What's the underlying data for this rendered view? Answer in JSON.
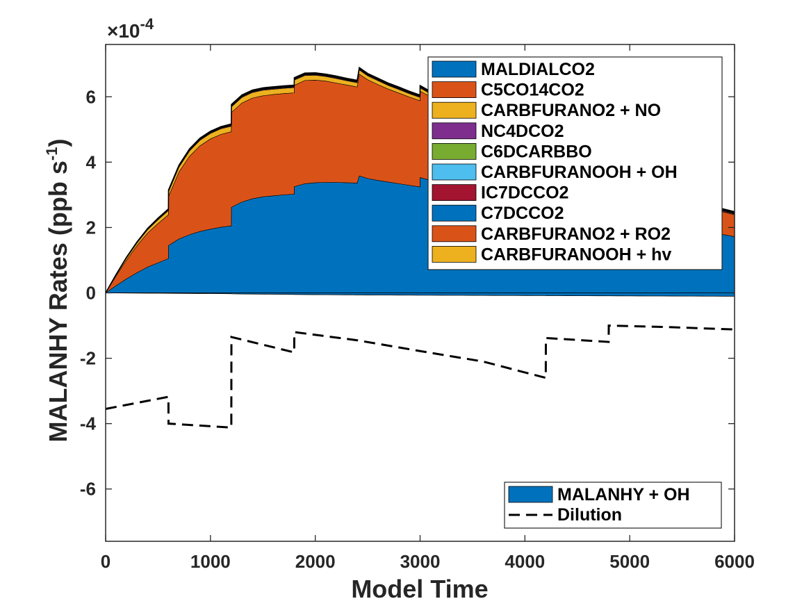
{
  "chart_data": {
    "type": "area",
    "xlabel": "Model Time",
    "ylabel": "MALANHY Rates (ppb s",
    "ylabel_sup": "-1",
    "ylabel_end": ")",
    "y_multiplier": {
      "base": "10",
      "exponent": "-4",
      "prefix": "×"
    },
    "xlim": [
      0,
      6000
    ],
    "ylim": [
      -7.6,
      7.6
    ],
    "x_ticks": [
      0,
      1000,
      2000,
      3000,
      4000,
      5000,
      6000
    ],
    "x_tick_labels": [
      "0",
      "1000",
      "2000",
      "3000",
      "4000",
      "5000",
      "6000"
    ],
    "y_ticks": [
      -6,
      -4,
      -2,
      0,
      2,
      4,
      6
    ],
    "y_tick_labels": [
      "-6",
      "-4",
      "-2",
      "0",
      "2",
      "4",
      "6"
    ],
    "grid": false,
    "x": [
      0,
      100,
      200,
      300,
      400,
      500,
      599,
      600,
      700,
      800,
      900,
      1000,
      1100,
      1199,
      1200,
      1300,
      1400,
      1500,
      1600,
      1700,
      1799,
      1800,
      1900,
      2000,
      2100,
      2200,
      2300,
      2400,
      2420,
      2500,
      2600,
      2700,
      2800,
      2900,
      2999,
      3000,
      3100,
      3200,
      3300,
      3400,
      3500,
      3600,
      3700,
      3800,
      3900,
      4000,
      4100,
      4199,
      4200,
      4300,
      4400,
      4500,
      4600,
      4700,
      4799,
      4800,
      4900,
      5000,
      5100,
      5200,
      5300,
      5400,
      5500,
      5600,
      5700,
      5800,
      5900,
      6000
    ],
    "positive_series": [
      {
        "name": "MALDIALCO2",
        "color": "#0072BD",
        "values": [
          0,
          0.22,
          0.43,
          0.62,
          0.79,
          0.92,
          1.05,
          1.45,
          1.65,
          1.78,
          1.88,
          1.95,
          2.01,
          2.05,
          2.62,
          2.78,
          2.88,
          2.94,
          2.97,
          3.0,
          3.02,
          3.25,
          3.34,
          3.37,
          3.38,
          3.38,
          3.37,
          3.36,
          3.58,
          3.5,
          3.44,
          3.39,
          3.34,
          3.29,
          3.24,
          3.53,
          3.44,
          3.37,
          3.31,
          3.25,
          3.19,
          3.13,
          3.07,
          3.01,
          2.96,
          2.91,
          2.86,
          2.82,
          2.7,
          2.63,
          2.56,
          2.49,
          2.42,
          2.36,
          2.3,
          2.35,
          2.3,
          2.24,
          2.18,
          2.13,
          2.08,
          2.03,
          1.98,
          1.93,
          1.88,
          1.83,
          1.78,
          1.72
        ]
      },
      {
        "name": "C5CO14CO2",
        "color": "#D95319",
        "values": [
          0,
          0.3,
          0.58,
          0.83,
          1.04,
          1.2,
          1.34,
          1.5,
          2.05,
          2.4,
          2.62,
          2.76,
          2.84,
          2.88,
          2.9,
          3.03,
          3.08,
          3.09,
          3.1,
          3.1,
          3.1,
          3.1,
          3.16,
          3.14,
          3.1,
          3.04,
          2.99,
          2.94,
          3.11,
          3.02,
          2.93,
          2.84,
          2.77,
          2.7,
          2.64,
          2.64,
          2.56,
          2.48,
          2.4,
          2.33,
          2.26,
          2.2,
          2.14,
          2.08,
          2.03,
          1.98,
          1.93,
          1.88,
          1.68,
          1.6,
          1.52,
          1.45,
          1.38,
          1.32,
          1.26,
          1.08,
          1.03,
          0.98,
          0.94,
          0.9,
          0.86,
          0.82,
          0.79,
          0.76,
          0.73,
          0.71,
          0.69,
          0.67
        ]
      },
      {
        "name": "CARBFURANO2 + NO",
        "color": "#EDB120",
        "values": [
          0,
          0.03,
          0.06,
          0.08,
          0.1,
          0.12,
          0.13,
          0.14,
          0.15,
          0.16,
          0.17,
          0.17,
          0.17,
          0.17,
          0.17,
          0.17,
          0.17,
          0.17,
          0.16,
          0.16,
          0.16,
          0.16,
          0.15,
          0.15,
          0.14,
          0.14,
          0.13,
          0.13,
          0.13,
          0.12,
          0.12,
          0.11,
          0.11,
          0.1,
          0.1,
          0.1,
          0.09,
          0.09,
          0.08,
          0.08,
          0.08,
          0.07,
          0.07,
          0.07,
          0.06,
          0.06,
          0.06,
          0.06,
          0.05,
          0.05,
          0.05,
          0.04,
          0.04,
          0.04,
          0.04,
          0.03,
          0.03,
          0.03,
          0.03,
          0.03,
          0.03,
          0.02,
          0.02,
          0.02,
          0.02,
          0.02,
          0.02,
          0.02
        ]
      },
      {
        "name": "NC4DCO2",
        "color": "#7E2F8E",
        "values": [
          0,
          0.004,
          0.008,
          0.01,
          0.012,
          0.014,
          0.015,
          0.016,
          0.017,
          0.018,
          0.018,
          0.019,
          0.019,
          0.019,
          0.02,
          0.02,
          0.02,
          0.02,
          0.02,
          0.02,
          0.02,
          0.02,
          0.02,
          0.02,
          0.02,
          0.02,
          0.02,
          0.02,
          0.02,
          0.02,
          0.02,
          0.02,
          0.02,
          0.02,
          0.02,
          0.02,
          0.02,
          0.02,
          0.02,
          0.02,
          0.02,
          0.02,
          0.02,
          0.02,
          0.02,
          0.02,
          0.02,
          0.02,
          0.02,
          0.02,
          0.02,
          0.02,
          0.02,
          0.02,
          0.02,
          0.02,
          0.02,
          0.02,
          0.02,
          0.02,
          0.02,
          0.02,
          0.02,
          0.02,
          0.02,
          0.02,
          0.02,
          0.02
        ]
      },
      {
        "name": "C6DCARBBO",
        "color": "#77AC30",
        "values": [
          0,
          0.002,
          0.003,
          0.004,
          0.005,
          0.006,
          0.006,
          0.007,
          0.007,
          0.008,
          0.008,
          0.008,
          0.008,
          0.008,
          0.009,
          0.009,
          0.009,
          0.009,
          0.009,
          0.009,
          0.009,
          0.009,
          0.009,
          0.009,
          0.009,
          0.009,
          0.009,
          0.009,
          0.009,
          0.009,
          0.009,
          0.009,
          0.009,
          0.009,
          0.009,
          0.009,
          0.009,
          0.009,
          0.009,
          0.009,
          0.009,
          0.009,
          0.009,
          0.009,
          0.009,
          0.009,
          0.009,
          0.009,
          0.009,
          0.009,
          0.009,
          0.009,
          0.009,
          0.009,
          0.009,
          0.009,
          0.009,
          0.009,
          0.009,
          0.009,
          0.009,
          0.009,
          0.009,
          0.009,
          0.009,
          0.009,
          0.009,
          0.009
        ]
      },
      {
        "name": "CARBFURANOOH + OH",
        "color": "#4DBEEE",
        "values": [
          0,
          0.002,
          0.003,
          0.004,
          0.005,
          0.006,
          0.006,
          0.007,
          0.007,
          0.008,
          0.008,
          0.008,
          0.008,
          0.008,
          0.009,
          0.009,
          0.009,
          0.009,
          0.009,
          0.009,
          0.009,
          0.009,
          0.009,
          0.009,
          0.009,
          0.009,
          0.009,
          0.009,
          0.009,
          0.009,
          0.009,
          0.009,
          0.009,
          0.009,
          0.009,
          0.009,
          0.009,
          0.009,
          0.009,
          0.009,
          0.009,
          0.009,
          0.009,
          0.009,
          0.009,
          0.009,
          0.009,
          0.009,
          0.009,
          0.009,
          0.009,
          0.009,
          0.009,
          0.009,
          0.009,
          0.009,
          0.009,
          0.009,
          0.009,
          0.009,
          0.009,
          0.009,
          0.009,
          0.009,
          0.009,
          0.009,
          0.009,
          0.009
        ]
      },
      {
        "name": "IC7DCCO2",
        "color": "#A2142F",
        "values": [
          0,
          0.002,
          0.003,
          0.004,
          0.005,
          0.006,
          0.006,
          0.007,
          0.007,
          0.008,
          0.008,
          0.008,
          0.008,
          0.008,
          0.009,
          0.009,
          0.009,
          0.009,
          0.009,
          0.009,
          0.009,
          0.009,
          0.009,
          0.009,
          0.009,
          0.009,
          0.009,
          0.009,
          0.009,
          0.009,
          0.009,
          0.009,
          0.009,
          0.009,
          0.009,
          0.009,
          0.009,
          0.009,
          0.009,
          0.009,
          0.009,
          0.009,
          0.009,
          0.009,
          0.009,
          0.009,
          0.009,
          0.009,
          0.009,
          0.009,
          0.009,
          0.009,
          0.009,
          0.009,
          0.009,
          0.009,
          0.009,
          0.009,
          0.009,
          0.009,
          0.009,
          0.009,
          0.009,
          0.009,
          0.009,
          0.009,
          0.009,
          0.009
        ]
      },
      {
        "name": "C7DCCO2",
        "color": "#0072BD",
        "values": [
          0,
          0.002,
          0.003,
          0.004,
          0.005,
          0.006,
          0.006,
          0.007,
          0.007,
          0.008,
          0.008,
          0.008,
          0.008,
          0.008,
          0.009,
          0.009,
          0.009,
          0.009,
          0.009,
          0.009,
          0.009,
          0.009,
          0.009,
          0.009,
          0.009,
          0.009,
          0.009,
          0.009,
          0.009,
          0.009,
          0.009,
          0.009,
          0.009,
          0.009,
          0.009,
          0.009,
          0.009,
          0.009,
          0.009,
          0.009,
          0.009,
          0.009,
          0.009,
          0.009,
          0.009,
          0.009,
          0.009,
          0.009,
          0.009,
          0.009,
          0.009,
          0.009,
          0.009,
          0.009,
          0.009,
          0.009,
          0.009,
          0.009,
          0.009,
          0.009,
          0.009,
          0.009,
          0.009,
          0.009,
          0.009,
          0.009,
          0.009,
          0.009
        ]
      },
      {
        "name": "CARBFURANO2 + RO2",
        "color": "#D95319",
        "values": [
          0,
          0.002,
          0.003,
          0.004,
          0.005,
          0.006,
          0.006,
          0.007,
          0.007,
          0.008,
          0.008,
          0.008,
          0.008,
          0.008,
          0.009,
          0.009,
          0.009,
          0.009,
          0.009,
          0.009,
          0.009,
          0.009,
          0.009,
          0.009,
          0.009,
          0.009,
          0.009,
          0.009,
          0.009,
          0.009,
          0.009,
          0.009,
          0.009,
          0.009,
          0.009,
          0.009,
          0.009,
          0.009,
          0.009,
          0.009,
          0.009,
          0.009,
          0.009,
          0.009,
          0.009,
          0.009,
          0.009,
          0.009,
          0.009,
          0.009,
          0.009,
          0.009,
          0.009,
          0.009,
          0.009,
          0.009,
          0.009,
          0.009,
          0.009,
          0.009,
          0.009,
          0.009,
          0.009,
          0.009,
          0.009,
          0.009,
          0.009,
          0.009
        ]
      },
      {
        "name": "CARBFURANOOH + hv",
        "color": "#EDB120",
        "values": [
          0,
          0.002,
          0.003,
          0.004,
          0.005,
          0.006,
          0.006,
          0.007,
          0.007,
          0.008,
          0.008,
          0.008,
          0.008,
          0.008,
          0.009,
          0.009,
          0.009,
          0.009,
          0.009,
          0.009,
          0.009,
          0.009,
          0.009,
          0.009,
          0.009,
          0.009,
          0.009,
          0.009,
          0.009,
          0.009,
          0.009,
          0.009,
          0.009,
          0.009,
          0.009,
          0.009,
          0.009,
          0.009,
          0.009,
          0.009,
          0.009,
          0.009,
          0.009,
          0.009,
          0.009,
          0.009,
          0.009,
          0.009,
          0.009,
          0.009,
          0.009,
          0.009,
          0.009,
          0.009,
          0.009,
          0.009,
          0.009,
          0.009,
          0.009,
          0.009,
          0.009,
          0.009,
          0.009,
          0.009,
          0.009,
          0.009,
          0.009,
          0.009
        ]
      }
    ],
    "negative_series": [
      {
        "name": "MALANHY + OH",
        "color": "#0072BD",
        "values": [
          0,
          -0.003,
          -0.005,
          -0.007,
          -0.009,
          -0.011,
          -0.012,
          -0.014,
          -0.016,
          -0.018,
          -0.02,
          -0.022,
          -0.024,
          -0.025,
          -0.03,
          -0.034,
          -0.037,
          -0.04,
          -0.043,
          -0.045,
          -0.047,
          -0.05,
          -0.052,
          -0.054,
          -0.056,
          -0.058,
          -0.06,
          -0.062,
          -0.064,
          -0.065,
          -0.066,
          -0.067,
          -0.068,
          -0.069,
          -0.07,
          -0.071,
          -0.072,
          -0.073,
          -0.074,
          -0.075,
          -0.076,
          -0.077,
          -0.078,
          -0.079,
          -0.08,
          -0.081,
          -0.082,
          -0.083,
          -0.084,
          -0.085,
          -0.086,
          -0.087,
          -0.088,
          -0.089,
          -0.09,
          -0.091,
          -0.092,
          -0.093,
          -0.094,
          -0.095,
          -0.096,
          -0.097,
          -0.098,
          -0.099,
          -0.1,
          -0.101,
          -0.102,
          -0.103
        ]
      }
    ],
    "lines": [
      {
        "name": "Dilution",
        "style": "dashed",
        "color": "#000000",
        "x": [
          0,
          599,
          600,
          1199,
          1200,
          1799,
          1800,
          2400,
          3000,
          3600,
          4199,
          4200,
          4799,
          4800,
          5400,
          6000
        ],
        "y": [
          -3.55,
          -3.18,
          -4.0,
          -4.12,
          -1.35,
          -1.82,
          -1.2,
          -1.45,
          -1.78,
          -2.1,
          -2.6,
          -1.38,
          -1.5,
          -1.0,
          -1.05,
          -1.12
        ]
      }
    ],
    "legend_positive": [
      "MALDIALCO2",
      "C5CO14CO2",
      "CARBFURANO2 + NO",
      "NC4DCO2",
      "C6DCARBBO",
      "CARBFURANOOH + OH",
      "IC7DCCO2",
      "C7DCCO2",
      "CARBFURANO2 + RO2",
      "CARBFURANOOH + hv"
    ],
    "legend_negative": [
      "MALANHY + OH",
      "Dilution"
    ],
    "legend_positive_placement": "top-right",
    "legend_negative_placement": "bottom-right"
  }
}
